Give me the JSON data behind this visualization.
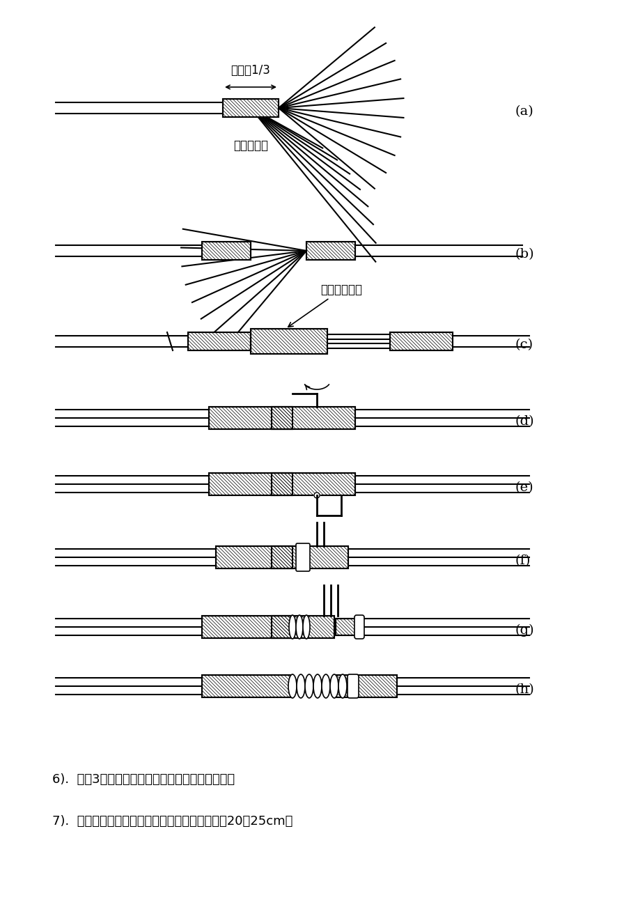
{
  "bg_color": "#ffffff",
  "line_color": "#000000",
  "hatch_color": "#000000",
  "label_a": "(a)",
  "label_b": "(b)",
  "label_c": "(c)",
  "label_d": "(d)",
  "label_e": "(e)",
  "label_f": "(f)",
  "label_g": "(g)",
  "label_h": "(h)",
  "annotation_a1": "全长的1/3",
  "annotation_a2": "进一步绞紧",
  "annotation_c": "叉口处应钳紧",
  "annotation_d_arrow": "↷",
  "text1": "6).  缠绕3圈后，切去每组多余的芯线，钳平线端。",
  "text2": "7).  用同样方法再缠绕另一边。（剥绝缘层长度为20～25cm）",
  "title_fontsize": 13,
  "label_fontsize": 14,
  "annot_fontsize": 12,
  "text_fontsize": 13
}
